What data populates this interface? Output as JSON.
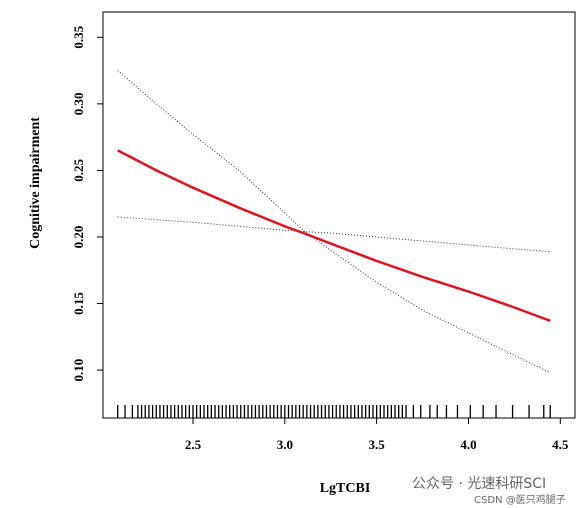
{
  "chart_data": {
    "type": "line",
    "x_label": "LgTCBI",
    "y_label": "Cognitive impairment",
    "x": [
      2.09,
      2.3,
      2.5,
      2.75,
      3.0,
      3.1,
      3.25,
      3.5,
      3.75,
      4.0,
      4.25,
      4.445
    ],
    "values": [
      0.265,
      0.25,
      0.237,
      0.222,
      0.208,
      0.203,
      0.195,
      0.182,
      0.17,
      0.159,
      0.147,
      0.137
    ],
    "color": "#e0141e",
    "series": [
      {
        "color": "#333333",
        "dash": "dotted",
        "values": [
          0.325,
          0.3,
          0.277,
          0.25,
          0.218,
          0.205,
          0.19,
          0.166,
          0.145,
          0.128,
          0.111,
          0.098
        ]
      },
      {
        "color": "#333333",
        "dash": "dotted",
        "values": [
          0.215,
          0.213,
          0.211,
          0.208,
          0.205,
          0.204,
          0.203,
          0.2,
          0.197,
          0.194,
          0.191,
          0.189
        ]
      }
    ],
    "rug": [
      2.09,
      2.13,
      2.17,
      2.2,
      2.22,
      2.24,
      2.26,
      2.28,
      2.3,
      2.32,
      2.34,
      2.36,
      2.38,
      2.4,
      2.42,
      2.44,
      2.46,
      2.48,
      2.5,
      2.52,
      2.54,
      2.56,
      2.58,
      2.6,
      2.62,
      2.64,
      2.66,
      2.68,
      2.7,
      2.72,
      2.74,
      2.76,
      2.78,
      2.8,
      2.82,
      2.84,
      2.86,
      2.88,
      2.9,
      2.92,
      2.94,
      2.96,
      2.98,
      3,
      3.02,
      3.04,
      3.06,
      3.08,
      3.1,
      3.12,
      3.14,
      3.16,
      3.18,
      3.2,
      3.22,
      3.24,
      3.26,
      3.28,
      3.3,
      3.32,
      3.34,
      3.36,
      3.38,
      3.4,
      3.42,
      3.44,
      3.46,
      3.48,
      3.5,
      3.52,
      3.54,
      3.56,
      3.58,
      3.6,
      3.62,
      3.64,
      3.66,
      3.7,
      3.74,
      3.79,
      3.83,
      3.88,
      3.94,
      4.01,
      4.08,
      4.15,
      4.24,
      4.33,
      4.41,
      4.445
    ],
    "xlim": [
      2.01,
      4.58
    ],
    "ylim": [
      0.064,
      0.369
    ],
    "xticks": [
      2.5,
      {
        "value": 3.0,
        "label": "3.0"
      },
      3.5,
      {
        "value": 4.0,
        "label": "4.0"
      },
      4.5
    ],
    "yticks": [
      {
        "value": 0.1,
        "label": "0.10"
      },
      {
        "value": 0.15,
        "label": "0.15"
      },
      {
        "value": 0.2,
        "label": "0.20"
      },
      {
        "value": 0.25,
        "label": "0.25"
      },
      {
        "value": 0.3,
        "label": "0.30"
      },
      {
        "value": 0.35,
        "label": "0.35"
      }
    ]
  },
  "watermark": {
    "line1": "公众号 · 光速科研SCI",
    "line2": "CSDN @医只鸡腿子"
  }
}
